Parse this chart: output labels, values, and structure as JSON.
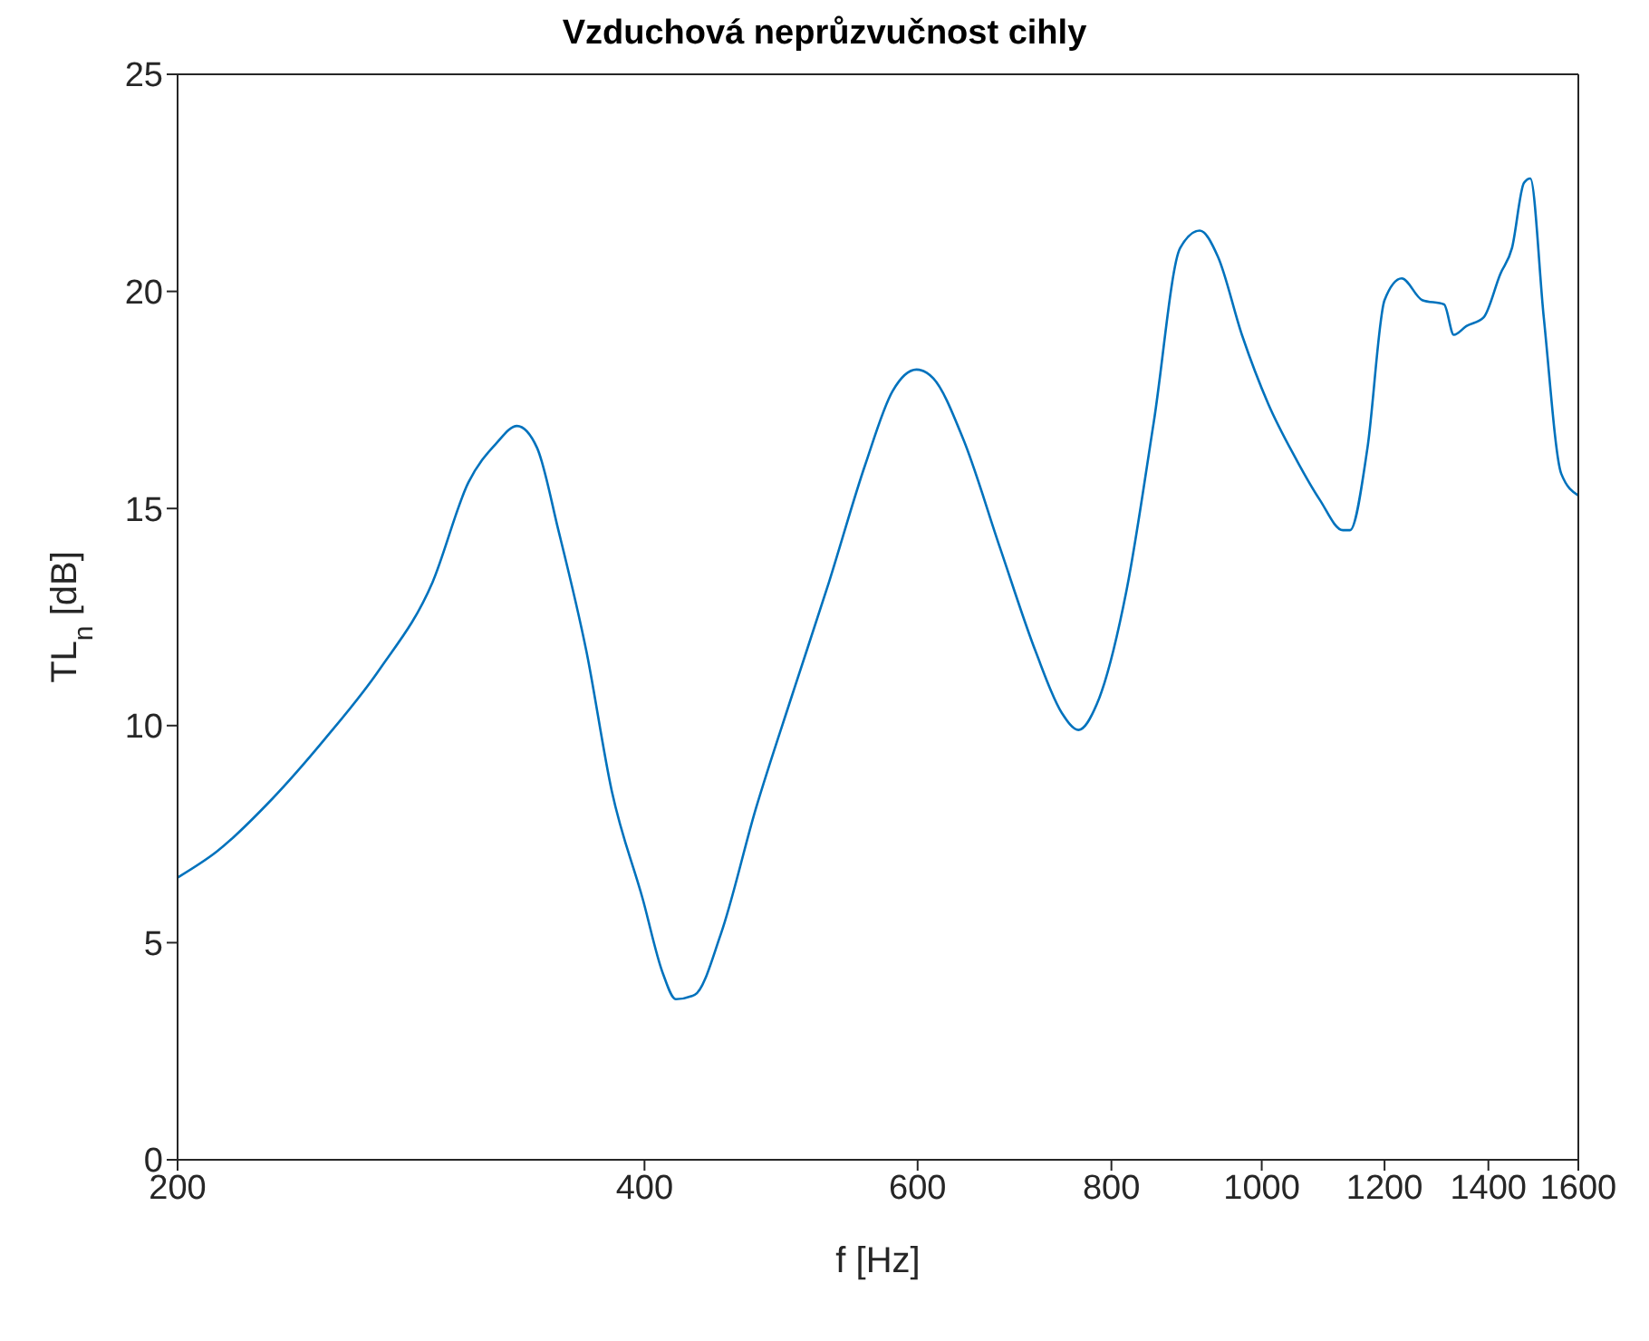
{
  "chart_data": {
    "type": "line",
    "title": "Vzduchová neprůzvučnost cihly",
    "xlabel": "f [Hz]",
    "ylabel": "TL$_{n}$ [dB]",
    "log": "x",
    "xlim": [
      200,
      1600
    ],
    "xticks": [
      200,
      400,
      600,
      800,
      1000,
      1200,
      1400,
      1600
    ],
    "ylim": [
      0,
      25
    ],
    "yticks": [
      0,
      5,
      10,
      15,
      20,
      25
    ],
    "legend": false,
    "marker": "none",
    "line_style": "solid",
    "series": [
      {
        "color": "#0072bd",
        "x": [
          200,
          212,
          230,
          249,
          270,
          292,
          308,
          321,
          331,
          341,
          352,
          367,
          381,
          399,
          411,
          419,
          431,
          448,
          472,
          498,
          526,
          555,
          578,
          599,
          614,
          642,
          678,
          715,
          743,
          762,
          783,
          818,
          852,
          886,
          912,
          937,
          971,
          1010,
          1050,
          1090,
          1128,
          1140,
          1170,
          1200,
          1231,
          1269,
          1311,
          1330,
          1355,
          1390,
          1425,
          1450,
          1476,
          1490,
          1520,
          1560,
          1600
        ],
        "values": [
          6.5,
          7.1,
          8.3,
          9.7,
          11.3,
          13.3,
          15.6,
          16.5,
          16.9,
          16.4,
          14.5,
          11.7,
          8.5,
          6.0,
          4.3,
          3.7,
          3.8,
          5.2,
          8.1,
          10.7,
          13.3,
          16.0,
          17.7,
          18.2,
          18.0,
          16.6,
          14.1,
          11.7,
          10.3,
          9.9,
          10.5,
          13.1,
          17.0,
          21.0,
          21.4,
          20.8,
          19.0,
          17.4,
          16.2,
          15.2,
          14.5,
          14.5,
          16.4,
          19.8,
          20.3,
          19.8,
          19.7,
          19.0,
          19.2,
          19.4,
          20.4,
          21.0,
          22.5,
          22.6,
          19.4,
          15.8,
          15.3
        ]
      }
    ]
  }
}
